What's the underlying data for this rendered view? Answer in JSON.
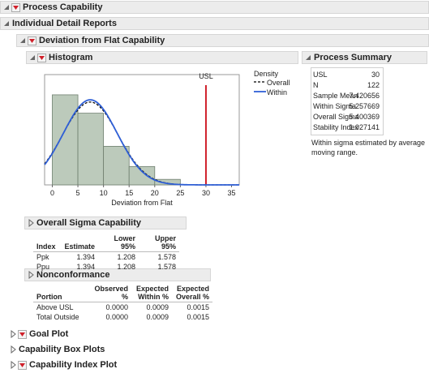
{
  "headers": {
    "process_capability": "Process Capability",
    "individual_detail_reports": "Individual Detail Reports",
    "deviation": "Deviation from Flat Capability",
    "histogram": "Histogram",
    "process_summary": "Process Summary",
    "overall_sigma": "Overall Sigma Capability",
    "nonconformance": "Nonconformance",
    "goal_plot": "Goal Plot",
    "box_plots": "Capability Box Plots",
    "index_plot": "Capability Index Plot"
  },
  "histogram": {
    "type": "histogram",
    "x_label": "Deviation from Flat",
    "bins": [
      0,
      5,
      10,
      15,
      20,
      25
    ],
    "counts": [
      49,
      39,
      21,
      10,
      3
    ],
    "color": "#bccabb",
    "xlim": [
      -1.5,
      36.5
    ],
    "xticks": [
      0,
      5,
      10,
      15,
      20,
      25,
      30,
      35
    ],
    "ylim": [
      0,
      60
    ],
    "reference_label": "USL",
    "reference_color": "#d0202a",
    "legend_title": "Density",
    "legend": [
      {
        "name": "Overall",
        "color": "#000000",
        "dashed": true
      },
      {
        "name": "Within",
        "color": "#2f5fd6",
        "dashed": false
      }
    ]
  },
  "process_summary": {
    "rows": [
      {
        "label": "USL",
        "value": 30
      },
      {
        "label": "N",
        "value": 122
      },
      {
        "label": "Sample Mean",
        "value": 7.420656
      },
      {
        "label": "Within Sigma",
        "value": 5.257669
      },
      {
        "label": "Overall Sigma",
        "value": 5.400369
      },
      {
        "label": "Stability Index",
        "value": 1.027141
      }
    ],
    "note": "Within sigma estimated by average moving range."
  },
  "overall_sigma_table": {
    "columns": [
      "Index",
      "Estimate",
      "Lower 95%",
      "Upper 95%"
    ],
    "rows": [
      [
        "Ppk",
        "1.394",
        "1.208",
        "1.578"
      ],
      [
        "Ppu",
        "1.394",
        "1.208",
        "1.578"
      ]
    ]
  },
  "nonconformance_table": {
    "columns": [
      "Portion",
      "Observed %",
      "Expected Within %",
      "Expected Overall %"
    ],
    "rows": [
      [
        "Above USL",
        "0.0000",
        "0.0009",
        "0.0015"
      ],
      [
        "Total Outside",
        "0.0000",
        "0.0009",
        "0.0015"
      ]
    ]
  }
}
